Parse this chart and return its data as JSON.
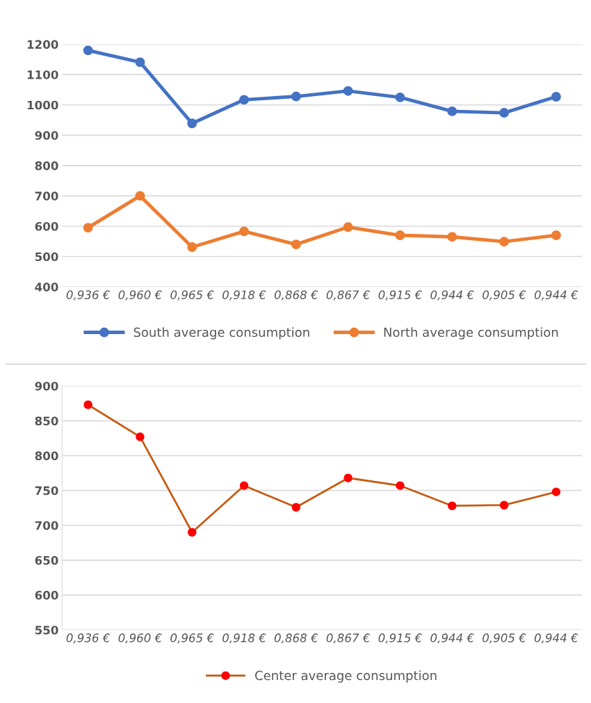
{
  "chart_data": [
    {
      "type": "line",
      "categories": [
        "0,936 €",
        "0,960 €",
        "0,965 €",
        "0,918 €",
        "0,868 €",
        "0,867 €",
        "0,915 €",
        "0,944 €",
        "0,905 €",
        "0,944 €"
      ],
      "series": [
        {
          "name": "South average consumption",
          "color": "#4472c4",
          "values": [
            1180,
            1141,
            939,
            1017,
            1028,
            1046,
            1025,
            979,
            974,
            1027
          ]
        },
        {
          "name": "North average consumption",
          "color": "#ed7d31",
          "values": [
            595,
            700,
            531,
            583,
            540,
            597,
            570,
            565,
            549,
            570
          ]
        }
      ],
      "ylim": [
        400,
        1200
      ],
      "yticks": [
        400,
        500,
        600,
        700,
        800,
        900,
        1000,
        1100,
        1200
      ],
      "grid": "y",
      "legend": "bottom",
      "marker": "circle",
      "line_style": "solid"
    },
    {
      "type": "line",
      "categories": [
        "0,936 €",
        "0,960 €",
        "0,965 €",
        "0,918 €",
        "0,868 €",
        "0,867 €",
        "0,915 €",
        "0,944 €",
        "0,905 €",
        "0,944 €"
      ],
      "series": [
        {
          "name": "Center average consumption",
          "color": "#c55a11",
          "colors": [
            "#ff0000",
            "#ff0000",
            "#ff0000",
            "#ff0000",
            "#ff0000",
            "#ff0000",
            "#ff0000",
            "#ff0000",
            "#ff0000",
            "#ff0000"
          ],
          "values": [
            873,
            827,
            690,
            757,
            726,
            768,
            757,
            728,
            729,
            748
          ]
        }
      ],
      "ylim": [
        550,
        900
      ],
      "yticks": [
        550,
        600,
        650,
        700,
        750,
        800,
        850,
        900
      ],
      "grid": "y",
      "legend": "bottom",
      "marker": "circle",
      "line_style": "solid"
    }
  ]
}
